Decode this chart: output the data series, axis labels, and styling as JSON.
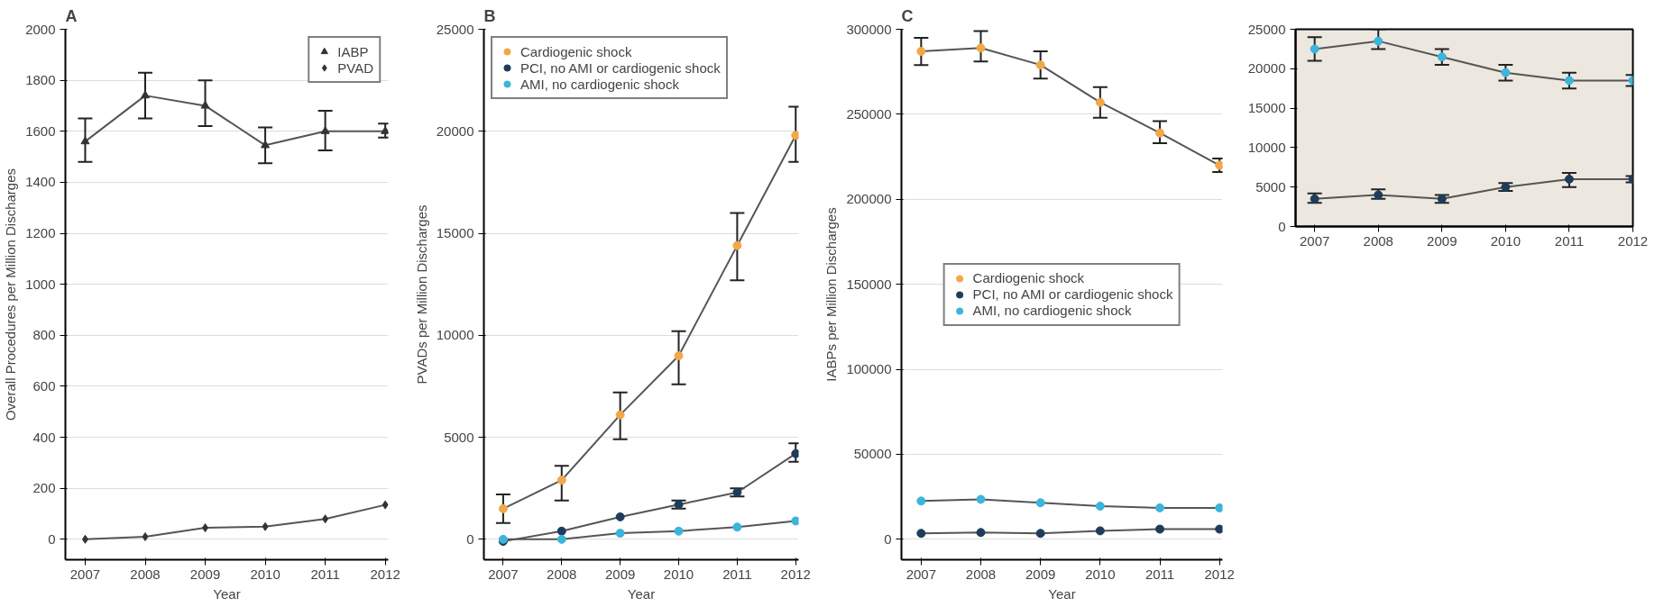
{
  "chart_data": [
    {
      "type": "line",
      "title": "A",
      "xlabel": "Year",
      "ylabel": "Overall Procedures per Million Discharges",
      "x": [
        2007,
        2008,
        2009,
        2010,
        2011,
        2012
      ],
      "xlim": [
        2006.67,
        2012.05
      ],
      "xticks": [
        2007,
        2008,
        2009,
        2010,
        2011,
        2012
      ],
      "ylim": [
        -80,
        2000
      ],
      "yticks": [
        0,
        200,
        400,
        600,
        800,
        1000,
        1200,
        1400,
        1600,
        1800,
        2000
      ],
      "grid": "y",
      "legend": "top right",
      "series": [
        {
          "name": "IABP",
          "color": "#333333",
          "marker": "triangle",
          "values": [
            1560,
            1740,
            1700,
            1545,
            1600,
            1600
          ],
          "errors": [
            [
              1480,
              1650
            ],
            [
              1650,
              1830
            ],
            [
              1620,
              1800
            ],
            [
              1475,
              1615
            ],
            [
              1525,
              1680
            ],
            [
              1575,
              1630
            ]
          ]
        },
        {
          "name": "PVAD",
          "color": "#333333",
          "marker": "diamond",
          "values": [
            0,
            10,
            45,
            50,
            80,
            135
          ]
        }
      ]
    },
    {
      "type": "line",
      "title": "B",
      "xlabel": "Year",
      "ylabel": "PVADs per Million Discharges",
      "x": [
        2007,
        2008,
        2009,
        2010,
        2011,
        2012
      ],
      "xlim": [
        2006.67,
        2012.05
      ],
      "xticks": [
        2007,
        2008,
        2009,
        2010,
        2011,
        2012
      ],
      "ylim": [
        -1000,
        25000
      ],
      "yticks": [
        0,
        5000,
        10000,
        15000,
        20000,
        25000
      ],
      "grid": "y",
      "legend": "top left",
      "marker": "circle",
      "series": [
        {
          "name": "Cardiogenic shock",
          "color": "#f0a848",
          "values": [
            1500,
            2900,
            6100,
            9000,
            14400,
            19800
          ],
          "errors": [
            [
              800,
              2200
            ],
            [
              1900,
              3600
            ],
            [
              4900,
              7200
            ],
            [
              7600,
              10200
            ],
            [
              12700,
              16000
            ],
            [
              18500,
              21200
            ]
          ]
        },
        {
          "name": "PCI, no AMI or cardiogenic shock",
          "color": "#1f3c5a",
          "values": [
            -100,
            400,
            1100,
            1700,
            2300,
            4200
          ],
          "errors": [
            null,
            null,
            null,
            [
              1500,
              1900
            ],
            [
              2100,
              2500
            ],
            [
              3800,
              4700
            ]
          ]
        },
        {
          "name": "AMI, no cardiogenic shock",
          "color": "#3cb4dc",
          "values": [
            0,
            0,
            300,
            400,
            600,
            900
          ]
        }
      ]
    },
    {
      "type": "line",
      "title": "C",
      "xlabel": "Year",
      "ylabel": "IABPs per Million Discharges",
      "x": [
        2007,
        2008,
        2009,
        2010,
        2011,
        2012
      ],
      "xlim": [
        2006.67,
        2012.05
      ],
      "xticks": [
        2007,
        2008,
        2009,
        2010,
        2011,
        2012
      ],
      "ylim": [
        -12000,
        300000
      ],
      "yticks": [
        0,
        50000,
        100000,
        150000,
        200000,
        250000,
        300000
      ],
      "grid": "y",
      "legend": "center",
      "marker": "circle",
      "series": [
        {
          "name": "Cardiogenic shock",
          "color": "#f0a848",
          "values": [
            287000,
            289000,
            279000,
            257000,
            239000,
            220000
          ],
          "errors": [
            [
              279000,
              295000
            ],
            [
              281000,
              299000
            ],
            [
              271000,
              287000
            ],
            [
              248000,
              266000
            ],
            [
              233000,
              246000
            ],
            [
              216000,
              224000
            ]
          ]
        },
        {
          "name": "PCI, no AMI or cardiogenic shock",
          "color": "#1f3c5a",
          "values": [
            3500,
            4000,
            3500,
            5000,
            6000,
            6000
          ]
        },
        {
          "name": "AMI, no cardiogenic shock",
          "color": "#3cb4dc",
          "values": [
            22500,
            23500,
            21500,
            19500,
            18500,
            18500
          ]
        }
      ]
    },
    {
      "type": "line",
      "x": [
        2007,
        2008,
        2009,
        2010,
        2011,
        2012
      ],
      "xlim": [
        2006.7,
        2012
      ],
      "xticks": [
        2007,
        2008,
        2009,
        2010,
        2011,
        2012
      ],
      "ylim": [
        0,
        25000
      ],
      "yticks": [
        0,
        5000,
        10000,
        15000,
        20000,
        25000
      ],
      "marker": "circle",
      "series": [
        {
          "color": "#1f3c5a",
          "values": [
            3500,
            4000,
            3500,
            5000,
            6000,
            6000
          ],
          "errors": [
            [
              3000,
              4200
            ],
            [
              3500,
              4700
            ],
            [
              3000,
              4000
            ],
            [
              4500,
              5500
            ],
            [
              5000,
              6800
            ],
            [
              5600,
              6400
            ]
          ]
        },
        {
          "color": "#3cb4dc",
          "values": [
            22500,
            23500,
            21500,
            19500,
            18500,
            18500
          ],
          "errors": [
            [
              21000,
              24000
            ],
            [
              22500,
              25000
            ],
            [
              20500,
              22500
            ],
            [
              18500,
              20500
            ],
            [
              17500,
              19500
            ],
            [
              17800,
              19200
            ]
          ]
        }
      ]
    }
  ]
}
